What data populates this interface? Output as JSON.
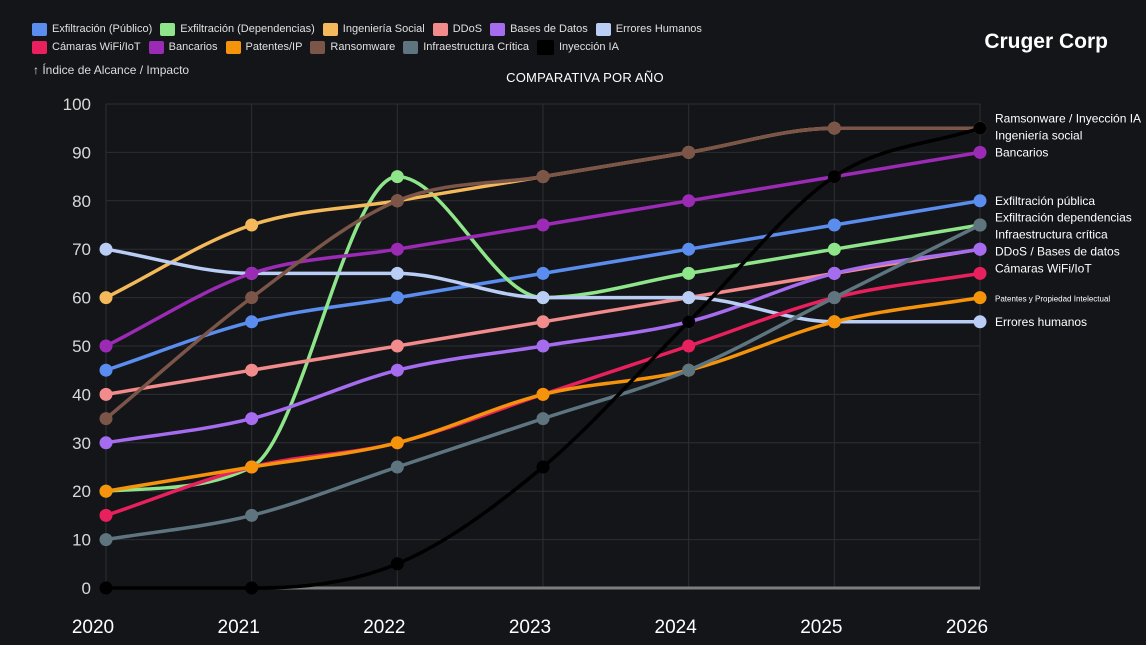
{
  "header": {
    "brand": "Cruger Corp",
    "axis_note": "↑ Índice de Alcance / Impacto"
  },
  "chart_data": {
    "type": "line",
    "title": "COMPARATIVA POR AÑO",
    "xlabel": "",
    "ylabel": "Índice de Alcance / Impacto",
    "ylim": [
      0,
      100
    ],
    "yticks": [
      0,
      10,
      20,
      30,
      40,
      50,
      60,
      70,
      80,
      90,
      100
    ],
    "categories": [
      "2020",
      "2021",
      "2022",
      "2023",
      "2024",
      "2025",
      "2026"
    ],
    "grid": true,
    "legend_position": "top-left",
    "series": [
      {
        "name": "Exfiltración (Público)",
        "color": "#5b8def",
        "values": [
          45,
          55,
          60,
          65,
          70,
          75,
          80
        ]
      },
      {
        "name": "Exfiltración (Dependencias)",
        "color": "#8ee58a",
        "values": [
          20,
          25,
          85,
          60,
          65,
          70,
          75
        ]
      },
      {
        "name": "Ingeniería Social",
        "color": "#f4b95a",
        "values": [
          60,
          75,
          80,
          85,
          90,
          95,
          95
        ]
      },
      {
        "name": "DDoS",
        "color": "#f28b8b",
        "values": [
          40,
          45,
          50,
          55,
          60,
          65,
          70
        ]
      },
      {
        "name": "Bases de Datos",
        "color": "#a66cf0",
        "values": [
          30,
          35,
          45,
          50,
          55,
          65,
          70
        ]
      },
      {
        "name": "Errores Humanos",
        "color": "#b9cdf5",
        "values": [
          70,
          65,
          65,
          60,
          60,
          55,
          55
        ]
      },
      {
        "name": "Cámaras WiFi/IoT",
        "color": "#e8215e",
        "values": [
          15,
          25,
          30,
          40,
          50,
          60,
          65
        ]
      },
      {
        "name": "Bancarios",
        "color": "#9b2bb5",
        "values": [
          50,
          65,
          70,
          75,
          80,
          85,
          90
        ]
      },
      {
        "name": "Patentes/IP",
        "color": "#f5930b",
        "values": [
          20,
          25,
          30,
          40,
          45,
          55,
          60
        ]
      },
      {
        "name": "Ransomware",
        "color": "#7a5548",
        "values": [
          35,
          60,
          80,
          85,
          90,
          95,
          95
        ]
      },
      {
        "name": "Infraestructura Crítica",
        "color": "#5e7580",
        "values": [
          10,
          15,
          25,
          35,
          45,
          60,
          75
        ]
      },
      {
        "name": "Inyección IA",
        "color": "#000000",
        "values": [
          0,
          0,
          5,
          25,
          55,
          85,
          95
        ]
      }
    ],
    "end_labels": [
      {
        "text": "Ramsonware / Inyección IA",
        "value": 97
      },
      {
        "text": "Ingeniería social",
        "value": 93.5
      },
      {
        "text": "Bancarios",
        "value": 90
      },
      {
        "text": "Exfiltración pública",
        "value": 80
      },
      {
        "text": "Exfiltración dependencias",
        "value": 76.5
      },
      {
        "text": "Infraestructura crítica",
        "value": 73
      },
      {
        "text": "DDoS / Bases de datos",
        "value": 69.5
      },
      {
        "text": "Cámaras WiFi/IoT",
        "value": 66
      },
      {
        "text": "Patentes y Propiedad Intelectual",
        "value": 60,
        "small": true
      },
      {
        "text": "Errores humanos",
        "value": 55
      }
    ]
  }
}
